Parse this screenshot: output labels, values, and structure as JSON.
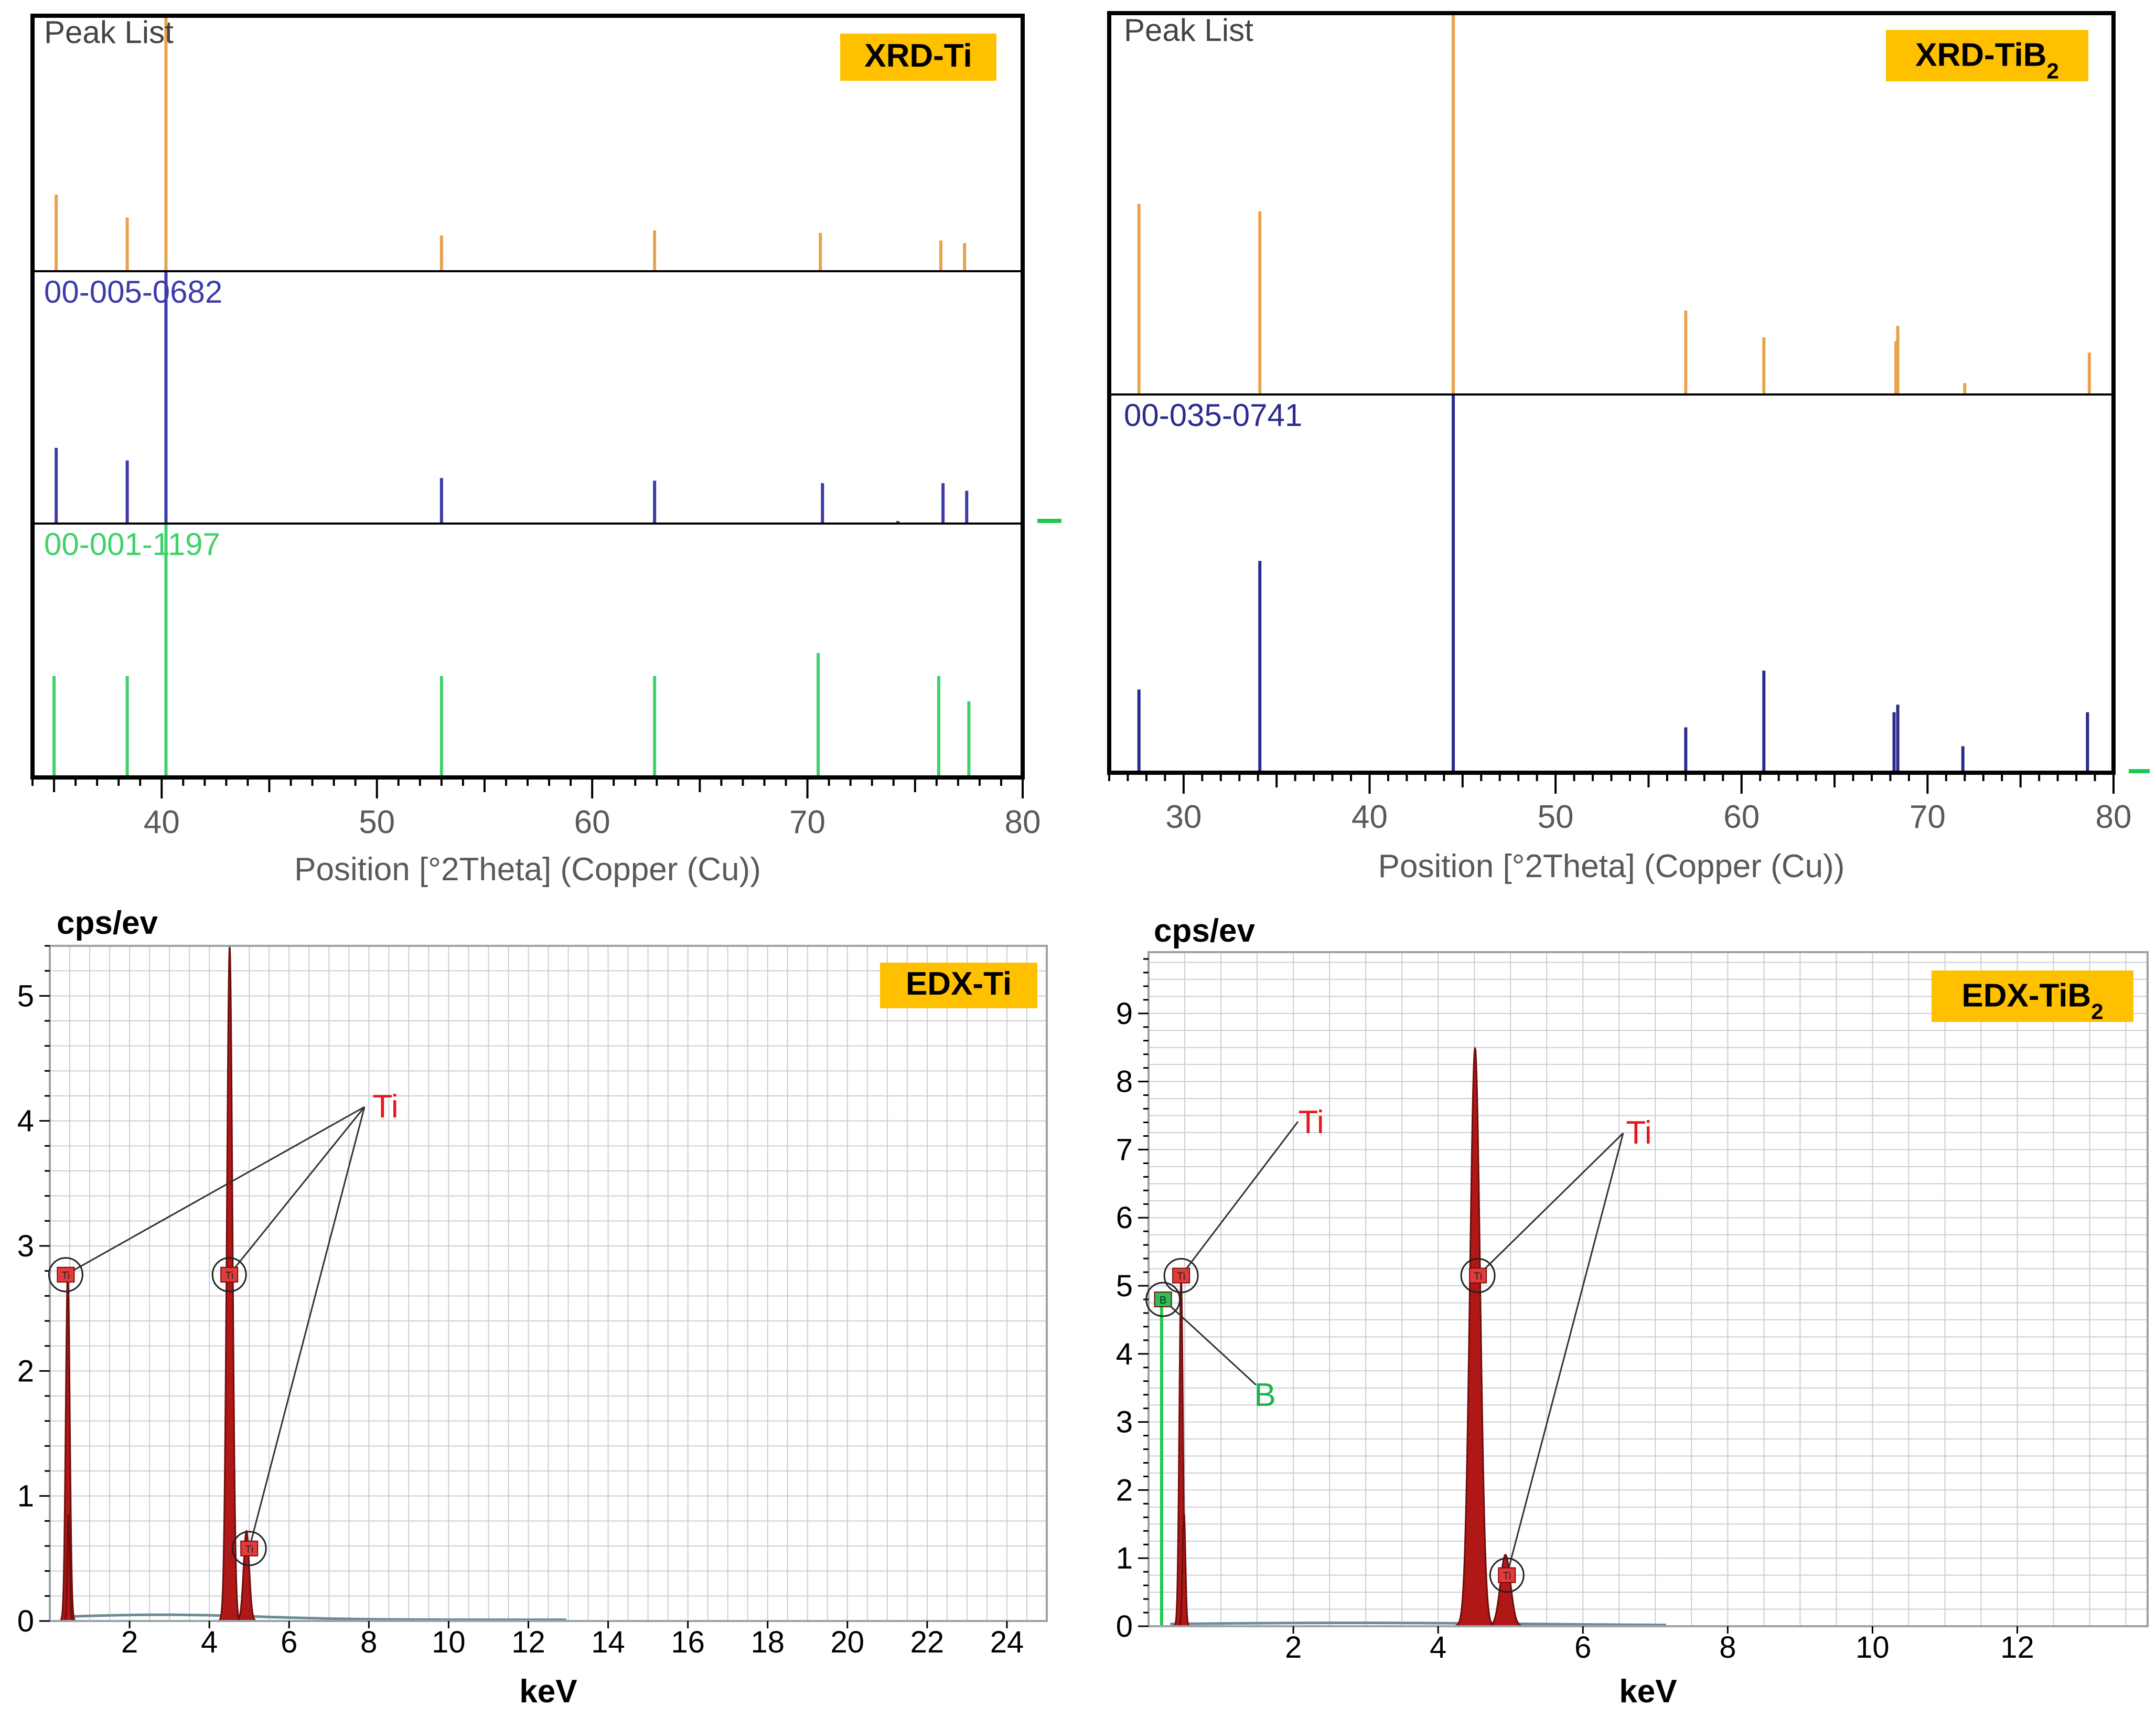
{
  "chart_data": [
    {
      "id": "xrd_ti",
      "type": "bar",
      "subtype": "xrd-stick-pattern",
      "title": "XRD-Ti",
      "panel_header": "Peak List",
      "xlabel": "Position [°2Theta] (Copper (Cu))",
      "xlim": [
        34,
        80
      ],
      "xticks": [
        40,
        50,
        60,
        70,
        80
      ],
      "grid": false,
      "series": [
        {
          "name": "Peak List",
          "color": "#e8a24c",
          "x": [
            35.1,
            38.4,
            40.2,
            53.0,
            62.9,
            70.6,
            76.2,
            77.3
          ],
          "values": [
            30,
            21,
            100,
            14,
            16,
            15,
            12,
            11
          ]
        },
        {
          "name": "00-005-0682",
          "color": "#3c3ca8",
          "x": [
            35.1,
            38.4,
            40.2,
            53.0,
            62.9,
            70.7,
            74.2,
            76.3,
            77.4
          ],
          "values": [
            30,
            25,
            100,
            18,
            17,
            16,
            1,
            16,
            13
          ]
        },
        {
          "name": "00-001-1197",
          "color": "#3fd16a",
          "x": [
            35.0,
            38.4,
            40.2,
            53.0,
            62.9,
            70.5,
            76.1,
            77.5
          ],
          "values": [
            40,
            40,
            100,
            40,
            40,
            49,
            40,
            30
          ]
        }
      ]
    },
    {
      "id": "xrd_tib2",
      "type": "bar",
      "subtype": "xrd-stick-pattern",
      "title": "XRD-TiB",
      "title_subscript": "2",
      "panel_header": "Peak List",
      "xlabel": "Position [°2Theta] (Copper (Cu))",
      "xlim": [
        26,
        80
      ],
      "xticks": [
        30,
        40,
        50,
        60,
        70,
        80
      ],
      "grid": false,
      "series": [
        {
          "name": "Peak List",
          "color": "#e8a24c",
          "x": [
            27.6,
            34.1,
            44.5,
            57.0,
            61.2,
            68.3,
            68.4,
            72.0,
            78.7
          ],
          "values": [
            50,
            48,
            100,
            22,
            15,
            14,
            18,
            3,
            11
          ]
        },
        {
          "name": "00-035-0741",
          "color": "#2b2b8c",
          "x": [
            27.6,
            34.1,
            44.5,
            57.0,
            61.2,
            68.2,
            68.4,
            71.9,
            78.6
          ],
          "values": [
            22,
            56,
            100,
            12,
            27,
            16,
            18,
            7,
            16
          ]
        }
      ]
    },
    {
      "id": "edx_ti",
      "type": "area",
      "subtype": "edx-spectrum",
      "title": "EDX-Ti",
      "ylabel": "cps/ev",
      "xlabel": "keV",
      "xlim": [
        0,
        25
      ],
      "ylim": [
        0,
        5.4
      ],
      "xticks": [
        2,
        4,
        6,
        8,
        10,
        12,
        14,
        16,
        18,
        20,
        22,
        24
      ],
      "yticks": [
        0,
        1,
        2,
        3,
        4,
        5
      ],
      "grid": true,
      "color": "#b01717",
      "peaks": [
        {
          "energy": 0.45,
          "height": 2.8,
          "width": 0.05
        },
        {
          "energy": 0.47,
          "height": 0.85,
          "width": 0.03
        },
        {
          "energy": 4.51,
          "height": 5.4,
          "width": 0.07
        },
        {
          "energy": 4.93,
          "height": 0.72,
          "width": 0.07
        }
      ],
      "annotations": [
        {
          "label": "Ti",
          "element": "Ti",
          "color": "#e8161b",
          "marker_text": "Ti",
          "marker_color": "#e33b3b",
          "markers": [
            {
              "x": 0.4,
              "y": 2.77
            },
            {
              "x": 4.5,
              "y": 2.77
            },
            {
              "x": 5.0,
              "y": 0.58
            }
          ]
        }
      ]
    },
    {
      "id": "edx_tib2",
      "type": "area",
      "subtype": "edx-spectrum",
      "title": "EDX-TiB",
      "title_subscript": "2",
      "ylabel": "cps/ev",
      "xlabel": "keV",
      "xlim": [
        0,
        13.8
      ],
      "ylim": [
        0,
        9.9
      ],
      "xticks": [
        2,
        4,
        6,
        8,
        10,
        12
      ],
      "yticks": [
        0,
        1,
        2,
        3,
        4,
        5,
        6,
        7,
        8,
        9
      ],
      "grid": true,
      "color": "#b01717",
      "peaks": [
        {
          "energy": 0.45,
          "height": 5.1,
          "width": 0.025
        },
        {
          "energy": 0.49,
          "height": 1.65,
          "width": 0.02
        },
        {
          "energy": 4.51,
          "height": 8.5,
          "width": 0.07
        },
        {
          "energy": 4.93,
          "height": 1.05,
          "width": 0.07
        }
      ],
      "boron_peak": {
        "energy": 0.18,
        "height": 4.75,
        "color": "#1fc94f"
      },
      "annotations": [
        {
          "label": "Ti",
          "element": "Ti",
          "color": "#e8161b",
          "marker_text": "Ti",
          "marker_color": "#e33b3b",
          "markers": [
            {
              "x": 0.45,
              "y": 5.15
            }
          ]
        },
        {
          "label": "Ti",
          "element": "Ti",
          "color": "#e8161b",
          "marker_text": "Ti",
          "marker_color": "#e33b3b",
          "markers": [
            {
              "x": 4.55,
              "y": 5.15
            },
            {
              "x": 4.95,
              "y": 0.75
            }
          ]
        },
        {
          "label": "B",
          "element": "B",
          "color": "#1db24b",
          "marker_text": "B",
          "marker_color": "#27c155",
          "markers": [
            {
              "x": 0.2,
              "y": 4.8
            }
          ]
        }
      ]
    }
  ],
  "style": {
    "badge_color": "#ffc000",
    "frame_color": "#000000",
    "grid_color": "#c9cfd6",
    "axis_text_color": "#000000",
    "xrd_axis_text_color": "#595959"
  }
}
